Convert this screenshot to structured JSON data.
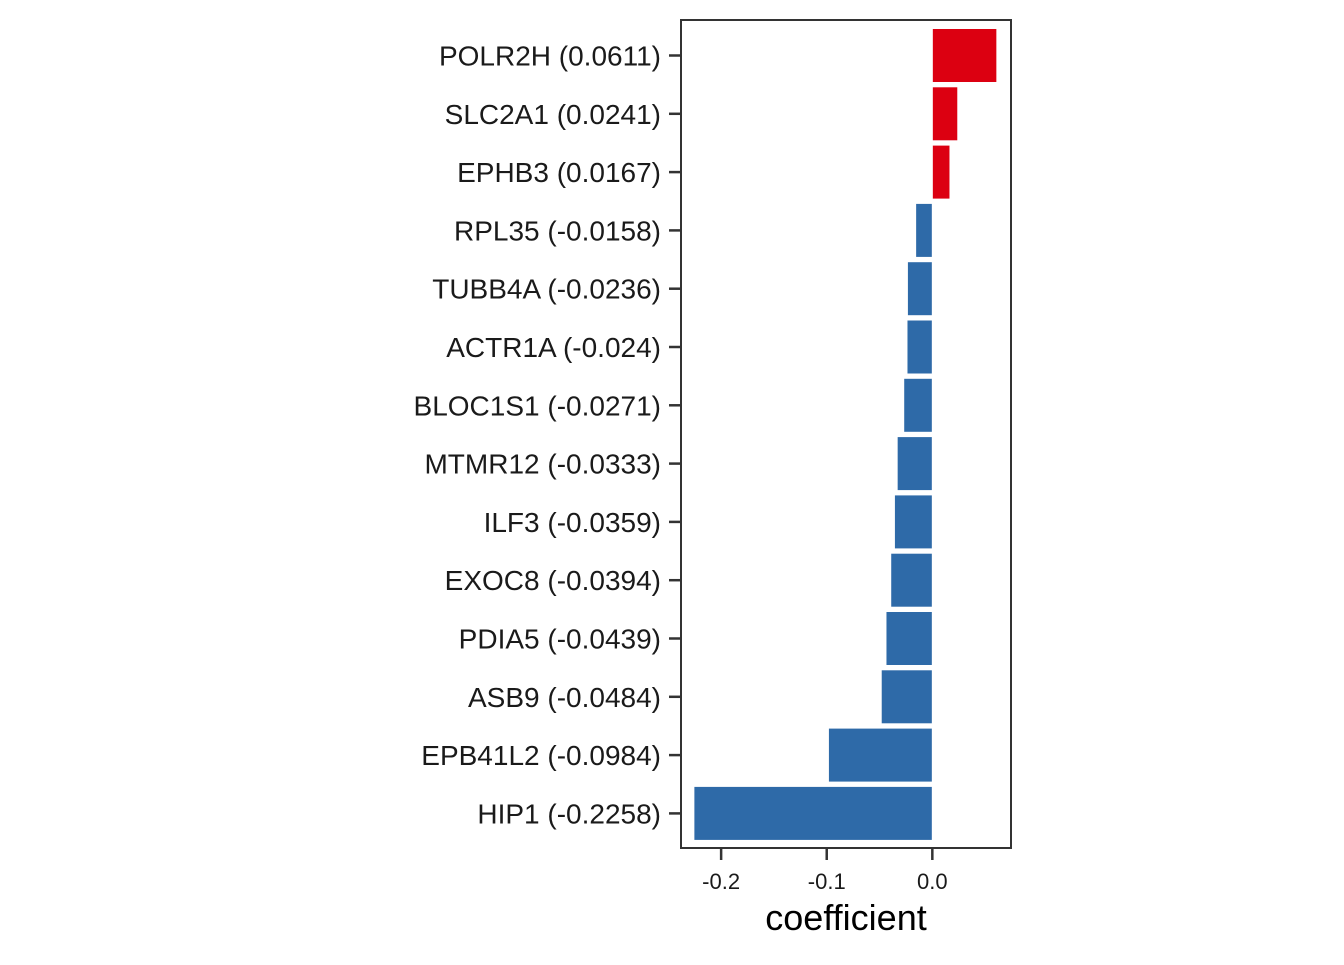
{
  "chart_data": {
    "type": "bar",
    "orientation": "horizontal",
    "title": "",
    "xlabel": "coefficient",
    "ylabel": "",
    "xlim": [
      -0.238,
      0.0745
    ],
    "xticks": [
      -0.2,
      -0.1,
      0.0
    ],
    "x_tick_labels": [
      "-0.2",
      "-0.1",
      "0.0"
    ],
    "grid": false,
    "legend": "none",
    "colors": {
      "positive": "#dc0011",
      "negative": "#2e6aa8",
      "bar_outline": "#ffffff",
      "panel_border": "#333333",
      "tick": "#333333"
    },
    "categories": [
      "POLR2H (0.0611)",
      "SLC2A1 (0.0241)",
      "EPHB3 (0.0167)",
      "RPL35 (-0.0158)",
      "TUBB4A (-0.0236)",
      "ACTR1A (-0.024)",
      "BLOC1S1 (-0.0271)",
      "MTMR12 (-0.0333)",
      "ILF3 (-0.0359)",
      "EXOC8 (-0.0394)",
      "PDIA5 (-0.0439)",
      "ASB9 (-0.0484)",
      "EPB41L2 (-0.0984)",
      "HIP1 (-0.2258)"
    ],
    "values": [
      0.0611,
      0.0241,
      0.0167,
      -0.0158,
      -0.0236,
      -0.024,
      -0.0271,
      -0.0333,
      -0.0359,
      -0.0394,
      -0.0439,
      -0.0484,
      -0.0984,
      -0.2258
    ]
  }
}
